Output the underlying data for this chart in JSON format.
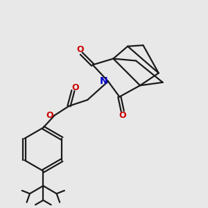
{
  "bg_color": "#e8e8e8",
  "bond_color": "#1a1a1a",
  "N_color": "#0000cc",
  "O_color": "#cc0000",
  "line_width": 1.6,
  "fig_size": [
    3.0,
    3.0
  ],
  "dpi": 100,
  "xlim": [
    0,
    10
  ],
  "ylim": [
    0,
    10
  ]
}
